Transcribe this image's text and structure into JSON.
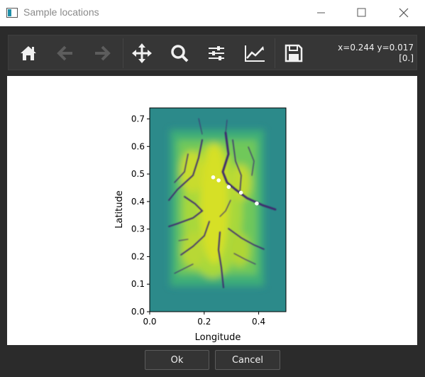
{
  "window": {
    "title": "Sample locations"
  },
  "toolbar": {
    "coord_line1": "x=0.244 y=0.017",
    "coord_line2": "[0.]",
    "icons": [
      "home-icon",
      "back-icon",
      "forward-icon",
      "pan-icon",
      "zoom-icon",
      "configure-subplots-icon",
      "edit-axis-icon",
      "save-icon"
    ]
  },
  "chart_data": {
    "type": "heatmap",
    "title": "",
    "xlabel": "Longitude",
    "ylabel": "Latitude",
    "xlim": [
      0.0,
      0.5
    ],
    "ylim": [
      0.0,
      0.74
    ],
    "xticks": [
      "0.0",
      "0.2",
      "0.4"
    ],
    "yticks": [
      "0.0",
      "0.1",
      "0.2",
      "0.3",
      "0.4",
      "0.5",
      "0.6",
      "0.7"
    ],
    "colormap": "viridis",
    "sample_points": [
      {
        "x": 0.233,
        "y": 0.488
      },
      {
        "x": 0.253,
        "y": 0.477
      },
      {
        "x": 0.29,
        "y": 0.453
      },
      {
        "x": 0.335,
        "y": 0.432
      },
      {
        "x": 0.393,
        "y": 0.393
      }
    ],
    "point_color": "#ffffff"
  },
  "buttons": {
    "ok": "Ok",
    "cancel": "Cancel"
  }
}
